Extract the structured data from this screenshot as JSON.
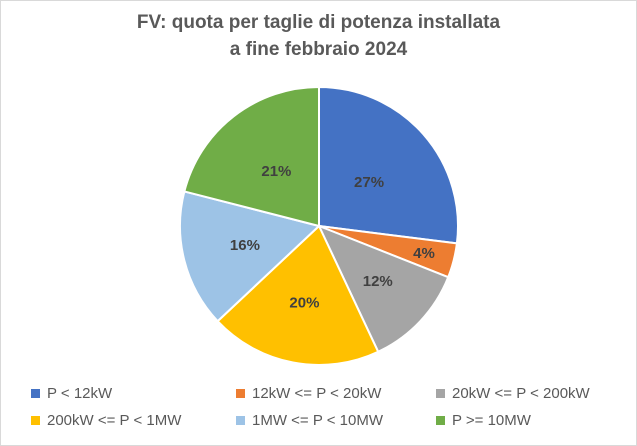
{
  "chart_data": {
    "type": "pie",
    "title_lines": [
      "FV: quota per taglie di potenza installata",
      "a fine febbraio 2024"
    ],
    "series": [
      {
        "name": "P < 12kW",
        "value": 27,
        "label": "27%",
        "color": "#4472C4"
      },
      {
        "name": "12kW <= P < 20kW",
        "value": 4,
        "label": "4%",
        "color": "#ED7D31"
      },
      {
        "name": "20kW <= P < 200kW",
        "value": 12,
        "label": "12%",
        "color": "#A5A5A5"
      },
      {
        "name": "200kW <= P < 1MW",
        "value": 20,
        "label": "20%",
        "color": "#FFC000"
      },
      {
        "name": "1MW <= P < 10MW",
        "value": 16,
        "label": "16%",
        "color": "#9DC3E6"
      },
      {
        "name": "P >= 10MW",
        "value": 21,
        "label": "21%",
        "color": "#70AD47"
      }
    ],
    "legend_position": "bottom"
  }
}
